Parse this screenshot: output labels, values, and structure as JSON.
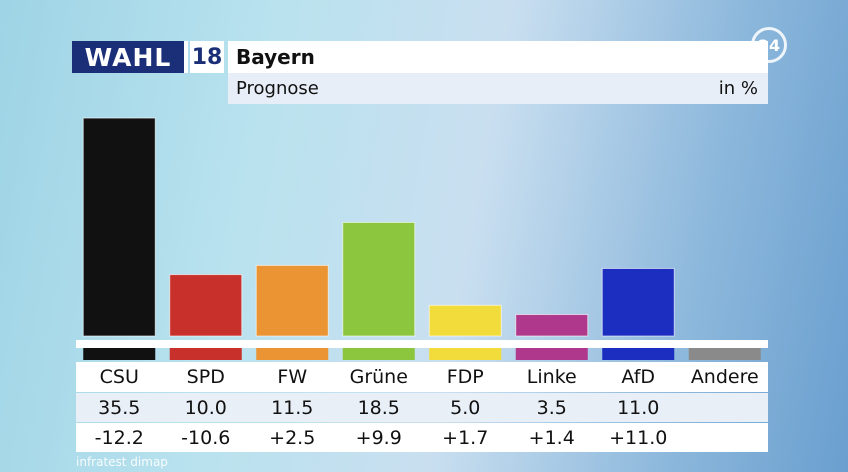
{
  "header": {
    "logo_text": "WAHL",
    "logo_year": "18",
    "title": "Bayern",
    "subtitle": "Prognose",
    "unit": "in %",
    "channel_badge": "24",
    "source": "infratest dimap"
  },
  "chart_data": {
    "type": "bar",
    "title": "Bayern",
    "subtitle": "Prognose",
    "ylabel": "in %",
    "categories": [
      "CSU",
      "SPD",
      "FW",
      "Grüne",
      "FDP",
      "Linke",
      "AfD",
      "Andere"
    ],
    "values": [
      35.5,
      10.0,
      11.5,
      18.5,
      5.0,
      3.5,
      11.0,
      null
    ],
    "value_labels": [
      "35.5",
      "10.0",
      "11.5",
      "18.5",
      "5.0",
      "3.5",
      "11.0",
      ""
    ],
    "changes": [
      "-12.2",
      "-10.6",
      "+2.5",
      "+9.9",
      "+1.7",
      "+1.4",
      "+11.0",
      ""
    ],
    "colors": [
      "#111111",
      "#c8302b",
      "#ea9433",
      "#8cc63e",
      "#f2dc3b",
      "#b0388c",
      "#1c2ec0",
      "#8a8a8a"
    ],
    "ylim": [
      0,
      36
    ],
    "grid": false
  }
}
